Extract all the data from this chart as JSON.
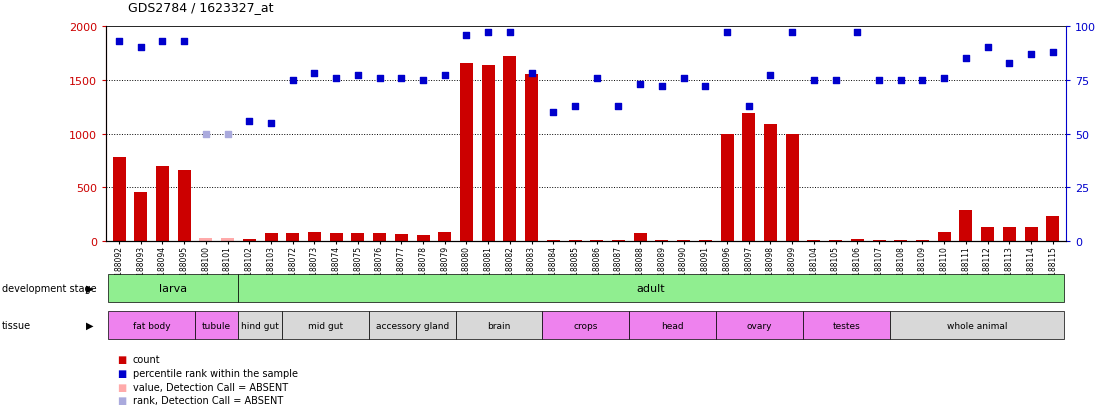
{
  "title": "GDS2784 / 1623327_at",
  "samples": [
    "GSM188092",
    "GSM188093",
    "GSM188094",
    "GSM188095",
    "GSM188100",
    "GSM188101",
    "GSM188102",
    "GSM188103",
    "GSM188072",
    "GSM188073",
    "GSM188074",
    "GSM188075",
    "GSM188076",
    "GSM188077",
    "GSM188078",
    "GSM188079",
    "GSM188080",
    "GSM188081",
    "GSM188082",
    "GSM188083",
    "GSM188084",
    "GSM188085",
    "GSM188086",
    "GSM188087",
    "GSM188088",
    "GSM188089",
    "GSM188090",
    "GSM188091",
    "GSM188096",
    "GSM188097",
    "GSM188098",
    "GSM188099",
    "GSM188104",
    "GSM188105",
    "GSM188106",
    "GSM188107",
    "GSM188108",
    "GSM188109",
    "GSM188110",
    "GSM188111",
    "GSM188112",
    "GSM188113",
    "GSM188114",
    "GSM188115"
  ],
  "counts": [
    780,
    460,
    700,
    660,
    30,
    25,
    20,
    80,
    80,
    90,
    75,
    80,
    75,
    70,
    60,
    90,
    1660,
    1640,
    1720,
    1550,
    15,
    15,
    15,
    15,
    80,
    15,
    15,
    10,
    1000,
    1190,
    1090,
    1000,
    10,
    10,
    20,
    10,
    10,
    10,
    85,
    290,
    130,
    130,
    130,
    230
  ],
  "counts_absent": [
    false,
    false,
    false,
    false,
    true,
    true,
    false,
    false,
    false,
    false,
    false,
    false,
    false,
    false,
    false,
    false,
    false,
    false,
    false,
    false,
    false,
    false,
    false,
    false,
    false,
    false,
    false,
    false,
    false,
    false,
    false,
    false,
    false,
    false,
    false,
    false,
    false,
    false,
    false,
    false,
    false,
    false,
    false,
    false
  ],
  "percentiles": [
    93,
    90,
    93,
    93,
    50,
    50,
    56,
    55,
    75,
    78,
    76,
    77,
    76,
    76,
    75,
    77,
    96,
    97,
    97,
    78,
    60,
    63,
    76,
    63,
    73,
    72,
    76,
    72,
    97,
    63,
    77,
    97,
    75,
    75,
    97,
    75,
    75,
    75,
    76,
    85,
    90,
    83,
    87,
    88
  ],
  "percentiles_absent": [
    false,
    false,
    false,
    false,
    true,
    true,
    false,
    false,
    false,
    false,
    false,
    false,
    false,
    false,
    false,
    false,
    false,
    false,
    false,
    false,
    false,
    false,
    false,
    false,
    false,
    false,
    false,
    false,
    false,
    false,
    false,
    false,
    false,
    false,
    false,
    false,
    false,
    false,
    false,
    false,
    false,
    false,
    false,
    false
  ],
  "dev_stage_groups": [
    {
      "label": "larva",
      "start": 0,
      "end": 6
    },
    {
      "label": "adult",
      "start": 6,
      "end": 44
    }
  ],
  "tissue_groups": [
    {
      "label": "fat body",
      "start": 0,
      "end": 4,
      "color": "#ee82ee"
    },
    {
      "label": "tubule",
      "start": 4,
      "end": 6,
      "color": "#ee82ee"
    },
    {
      "label": "hind gut",
      "start": 6,
      "end": 8,
      "color": "#d8d8d8"
    },
    {
      "label": "mid gut",
      "start": 8,
      "end": 12,
      "color": "#d8d8d8"
    },
    {
      "label": "accessory gland",
      "start": 12,
      "end": 16,
      "color": "#d8d8d8"
    },
    {
      "label": "brain",
      "start": 16,
      "end": 20,
      "color": "#d8d8d8"
    },
    {
      "label": "crops",
      "start": 20,
      "end": 24,
      "color": "#ee82ee"
    },
    {
      "label": "head",
      "start": 24,
      "end": 28,
      "color": "#ee82ee"
    },
    {
      "label": "ovary",
      "start": 28,
      "end": 32,
      "color": "#ee82ee"
    },
    {
      "label": "testes",
      "start": 32,
      "end": 36,
      "color": "#ee82ee"
    },
    {
      "label": "whole animal",
      "start": 36,
      "end": 44,
      "color": "#d8d8d8"
    }
  ],
  "ylim_left": [
    0,
    2000
  ],
  "ylim_right": [
    0,
    100
  ],
  "yticks_left": [
    0,
    500,
    1000,
    1500,
    2000
  ],
  "yticks_right": [
    0,
    25,
    50,
    75,
    100
  ],
  "bar_color": "#cc0000",
  "dot_color": "#0000cc",
  "dot_absent_color": "#aaaadd",
  "bar_absent_color": "#ffaaaa",
  "dev_color": "#90ee90",
  "background_color": "#ffffff",
  "legend": [
    {
      "label": "count",
      "color": "#cc0000"
    },
    {
      "label": "percentile rank within the sample",
      "color": "#0000cc"
    },
    {
      "label": "value, Detection Call = ABSENT",
      "color": "#ffaaaa"
    },
    {
      "label": "rank, Detection Call = ABSENT",
      "color": "#aaaadd"
    }
  ]
}
